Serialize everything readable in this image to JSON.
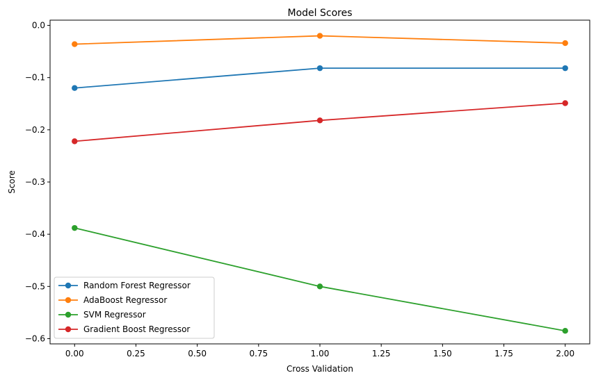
{
  "chart_data": {
    "type": "line",
    "title": "Model Scores",
    "xlabel": "Cross Validation",
    "ylabel": "Score",
    "xlim": [
      -0.1,
      2.1
    ],
    "ylim": [
      -0.61,
      0.01
    ],
    "x": [
      0.0,
      1.0,
      2.0
    ],
    "x_ticks": [
      "0.00",
      "0.25",
      "0.50",
      "0.75",
      "1.00",
      "1.25",
      "1.50",
      "1.75",
      "2.00"
    ],
    "y_ticks": [
      "0.0",
      "−0.1",
      "−0.2",
      "−0.3",
      "−0.4",
      "−0.5",
      "−0.6"
    ],
    "grid": false,
    "legend_position": "lower-left",
    "marker": "circle",
    "series": [
      {
        "name": "Random Forest Regressor",
        "color": "#1f77b4",
        "values": [
          -0.12,
          -0.082,
          -0.082
        ]
      },
      {
        "name": "AdaBoost Regressor",
        "color": "#ff7f0e",
        "values": [
          -0.036,
          -0.02,
          -0.034
        ]
      },
      {
        "name": "SVM Regressor",
        "color": "#2ca02c",
        "values": [
          -0.388,
          -0.5,
          -0.585
        ]
      },
      {
        "name": "Gradient Boost Regressor",
        "color": "#d62728",
        "values": [
          -0.222,
          -0.182,
          -0.149
        ]
      }
    ]
  }
}
